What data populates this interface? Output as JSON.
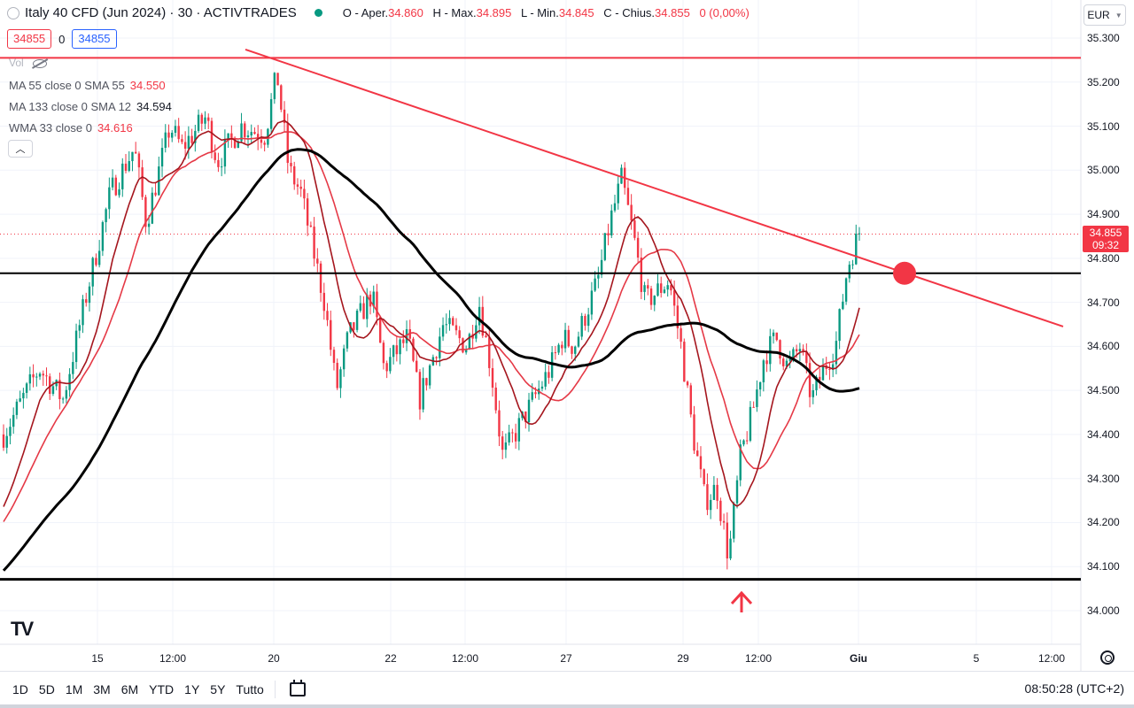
{
  "header": {
    "title": "Italy 40 CFD (Jun 2024) · 30 · ACTIVTRADES",
    "ohlc": [
      {
        "k": "O - Aper.",
        "v": "34.860"
      },
      {
        "k": "H - Max.",
        "v": "34.895"
      },
      {
        "k": "L - Min.",
        "v": "34.845"
      },
      {
        "k": "C - Chius.",
        "v": "34.855"
      },
      {
        "k": "",
        "v": "0 (0,00%)"
      }
    ],
    "sell": "34855",
    "spread": "0",
    "buy": "34855",
    "currency": "EUR"
  },
  "indicators": {
    "vol": "Vol",
    "ma55": {
      "label": "MA 55 close 0 SMA 55",
      "value": "34.550"
    },
    "ma133": {
      "label": "MA 133 close 0 SMA 12",
      "value": "34.594"
    },
    "wma33": {
      "label": "WMA 33 close 0",
      "value": "34.616"
    }
  },
  "last_price": {
    "price": "34.855",
    "countdown": "09:32"
  },
  "bottom": {
    "ranges": [
      "1D",
      "5D",
      "1M",
      "3M",
      "6M",
      "YTD",
      "1Y",
      "5Y",
      "Tutto"
    ],
    "clock": "08:50:28 (UTC+2)"
  },
  "colors": {
    "up": "#089981",
    "down": "#f23645",
    "ma_red": "#e53946",
    "ma_dark": "#a5161e",
    "ma_black": "#000000",
    "annotation": "#f23645"
  },
  "chart_data": {
    "type": "candlestick",
    "symbol": "Italy 40 CFD (Jun 2024)",
    "interval": "30",
    "y_ticks": [
      "35.300",
      "35.200",
      "35.100",
      "35.000",
      "34.900",
      "34.800",
      "34.700",
      "34.600",
      "34.500",
      "34.400",
      "34.300",
      "34.200",
      "34.100",
      "34.000"
    ],
    "ylim": [
      33.92,
      35.34
    ],
    "x_ticks": [
      "15",
      "12:00",
      "20",
      "22",
      "12:00",
      "27",
      "29",
      "12:00",
      "Giu",
      "5",
      "12:00"
    ],
    "price_path": [
      [
        0,
        34.4
      ],
      [
        3,
        34.55
      ],
      [
        5,
        34.48
      ],
      [
        7,
        34.72
      ],
      [
        9,
        34.95
      ],
      [
        11,
        35.05
      ],
      [
        12,
        34.88
      ],
      [
        14,
        35.1
      ],
      [
        15,
        35.05
      ],
      [
        17,
        35.12
      ],
      [
        18,
        35.02
      ],
      [
        20,
        35.1
      ],
      [
        22,
        35.08
      ],
      [
        23,
        35.22
      ],
      [
        24,
        35.0
      ],
      [
        25,
        34.95
      ],
      [
        27,
        34.7
      ],
      [
        28,
        34.5
      ],
      [
        29,
        34.62
      ],
      [
        31,
        34.72
      ],
      [
        32,
        34.55
      ],
      [
        34,
        34.62
      ],
      [
        35,
        34.48
      ],
      [
        37,
        34.65
      ],
      [
        39,
        34.6
      ],
      [
        40,
        34.7
      ],
      [
        41,
        34.55
      ],
      [
        42,
        34.35
      ],
      [
        43,
        34.4
      ],
      [
        44,
        34.45
      ],
      [
        46,
        34.55
      ],
      [
        47,
        34.62
      ],
      [
        48,
        34.6
      ],
      [
        50,
        34.75
      ],
      [
        51,
        34.88
      ],
      [
        52,
        34.98
      ],
      [
        53,
        34.85
      ],
      [
        54,
        34.7
      ],
      [
        56,
        34.75
      ],
      [
        57,
        34.6
      ],
      [
        58,
        34.4
      ],
      [
        59,
        34.25
      ],
      [
        60,
        34.28
      ],
      [
        61,
        34.12
      ],
      [
        62,
        34.35
      ],
      [
        63,
        34.45
      ],
      [
        64,
        34.58
      ],
      [
        65,
        34.62
      ],
      [
        66,
        34.55
      ],
      [
        67,
        34.6
      ],
      [
        68,
        34.48
      ],
      [
        69,
        34.55
      ],
      [
        70,
        34.6
      ],
      [
        71,
        34.78
      ],
      [
        72,
        34.86
      ]
    ],
    "series": [
      {
        "name": "MA 55 close 0 SMA 55",
        "last": 34.55
      },
      {
        "name": "MA 133 close 0 SMA 12",
        "last": 34.594
      },
      {
        "name": "WMA 33 close 0",
        "last": 34.616
      }
    ],
    "annotations": {
      "resistance_level": 35.255,
      "horizontal_level": 34.766,
      "support_level": 34.071,
      "trendline": {
        "from": [
          305,
          35.25
        ],
        "to": [
          1200,
          34.645
        ]
      },
      "marker_circle_price": 34.766,
      "arrow": "up"
    },
    "last_price": 34.855
  }
}
